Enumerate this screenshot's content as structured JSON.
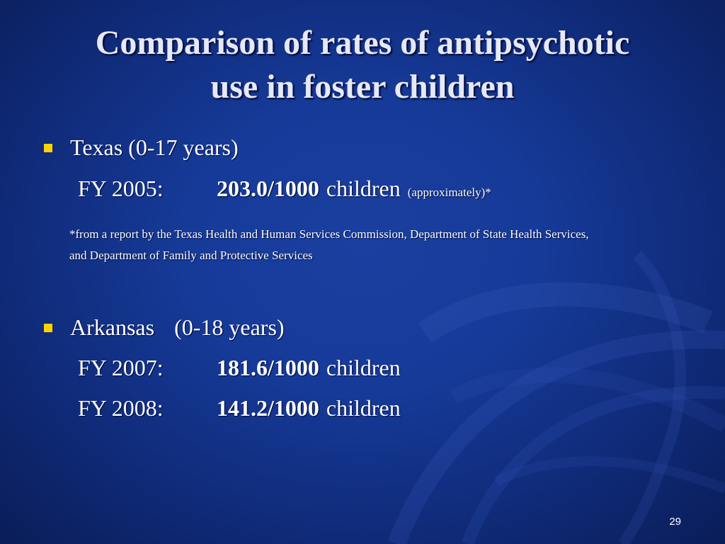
{
  "slide": {
    "title_lines": [
      "Comparison of rates of antipsychotic",
      "use in foster children"
    ],
    "bullets": [
      {
        "label": "Texas (0-17 years)",
        "entries": [
          {
            "label": "FY 2005:",
            "rate": "203.0/1000",
            "unit": "children",
            "note": "(approximately)*"
          }
        ],
        "footnote_lines": [
          "*from a report by the Texas Health and Human Services Commission, Department of State Health Services,",
          "and Department of Family and Protective Services"
        ]
      },
      {
        "label_parts": [
          "Arkansas",
          "(0-18 years)"
        ],
        "entries": [
          {
            "label": "FY 2007:",
            "rate": "181.6/1000",
            "unit": "children"
          },
          {
            "label": "FY 2008:",
            "rate": "141.2/1000",
            "unit": "children"
          }
        ]
      }
    ],
    "slide_number": "29",
    "colors": {
      "background": "#1a3fa0",
      "title_text": "#e6e8f5",
      "body_text": "#ffffff",
      "bullet": "#ffd400"
    }
  }
}
